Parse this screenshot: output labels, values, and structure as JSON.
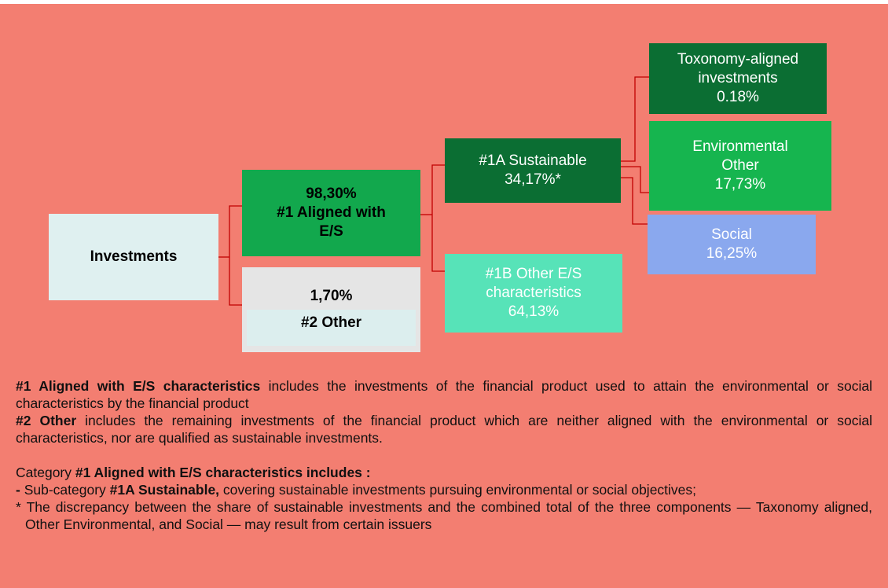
{
  "nodes": [
    {
      "id": "investments",
      "lines": [
        "Investments"
      ]
    },
    {
      "id": "aligned",
      "lines": [
        "98,30%",
        "#1 Aligned with",
        "E/S"
      ]
    },
    {
      "id": "other",
      "lines": [
        "1,70%",
        "#2 Other"
      ]
    },
    {
      "id": "sustainable",
      "lines": [
        "#1A Sustainable",
        "34,17%*"
      ]
    },
    {
      "id": "other-es",
      "lines": [
        "#1B Other E/S",
        "characteristics",
        "64,13%"
      ]
    },
    {
      "id": "taxonomy",
      "lines": [
        "Toxonomy-aligned",
        "investments",
        "0.18%"
      ]
    },
    {
      "id": "environmental",
      "lines": [
        "Environmental",
        "Other",
        "17,73%"
      ]
    },
    {
      "id": "social",
      "lines": [
        "Social",
        "16,25%"
      ]
    }
  ],
  "notes": [
    {
      "parts": [
        {
          "text": "#1 Aligned with E/S characteristics",
          "bold": true
        },
        {
          "text": " includes the investments of the financial product used to attain the environmental or social characteristics by the financial product",
          "bold": false
        }
      ]
    },
    {
      "parts": [
        {
          "text": "#2 Other",
          "bold": true
        },
        {
          "text": " includes the remaining investments of the financial product which are neither aligned with the environmental or social characteristics, nor are qualified as sustainable investments.",
          "bold": false
        }
      ]
    },
    {
      "parts": [
        {
          "text": "Category ",
          "bold": false
        },
        {
          "text": "#1 Aligned with E/S characteristics includes :",
          "bold": true
        }
      ]
    },
    {
      "parts": [
        {
          "text": "-",
          "bold": true
        },
        {
          "text": " Sub-category ",
          "bold": false
        },
        {
          "text": "#1A Sustainable,",
          "bold": true
        },
        {
          "text": "  covering sustainable investments pursuing environmental or social objectives;",
          "bold": false
        }
      ]
    },
    {
      "parts": [
        {
          "text": "* The discrepancy between the share of sustainable investments and the combined total of the three components — Taxonomy aligned, Other Environmental, and Social — may result from certain issuers",
          "bold": false
        }
      ]
    }
  ]
}
